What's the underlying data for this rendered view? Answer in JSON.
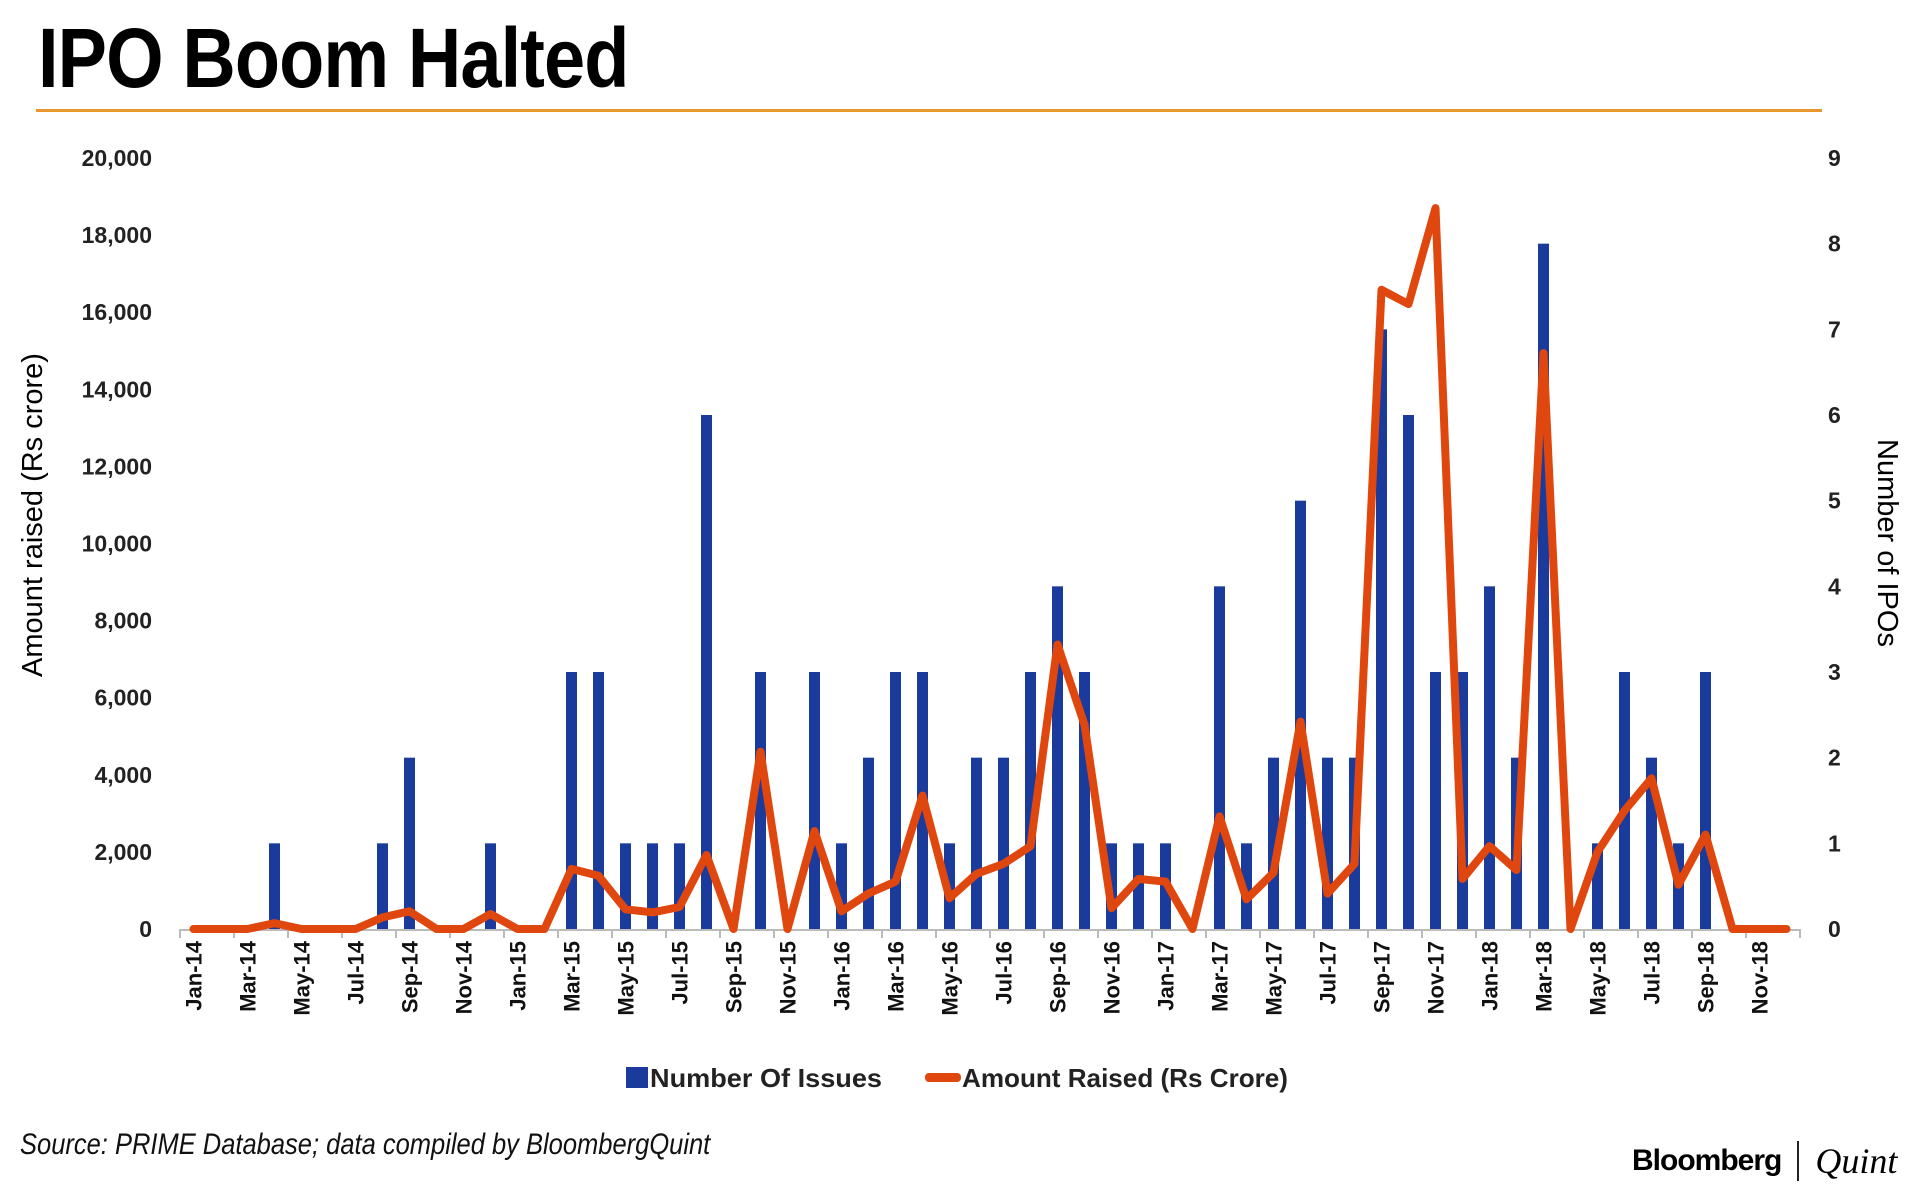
{
  "header": {
    "title": "IPO Boom Halted"
  },
  "footer": {
    "source": "Source: PRIME Database; data compiled by BloombergQuint",
    "logo_left": "Bloomberg",
    "logo_right": "Quint"
  },
  "colors": {
    "bars": "#1a3b9b",
    "line": "#e0470e",
    "rule": "#e8962e",
    "axis": "#bbbbbb"
  },
  "chart_data": {
    "type": "bar+line",
    "title": "IPO Boom Halted",
    "ylabel_left": "Amount raised (Rs crore)",
    "ylabel_right": "Number of IPOs",
    "ylim_left": [
      0,
      20000
    ],
    "ylim_right": [
      0,
      9
    ],
    "yticks_left": [
      "0",
      "2,000",
      "4,000",
      "6,000",
      "8,000",
      "10,000",
      "12,000",
      "14,000",
      "16,000",
      "18,000",
      "20,000"
    ],
    "yticks_right": [
      "0",
      "1",
      "2",
      "3",
      "4",
      "5",
      "6",
      "7",
      "8",
      "9"
    ],
    "grid": false,
    "legend_position": "bottom",
    "categories": [
      "Jan-14",
      "Feb-14",
      "Mar-14",
      "Apr-14",
      "May-14",
      "Jun-14",
      "Jul-14",
      "Aug-14",
      "Sep-14",
      "Oct-14",
      "Nov-14",
      "Dec-14",
      "Jan-15",
      "Feb-15",
      "Mar-15",
      "Apr-15",
      "May-15",
      "Jun-15",
      "Jul-15",
      "Aug-15",
      "Sep-15",
      "Oct-15",
      "Nov-15",
      "Dec-15",
      "Jan-16",
      "Feb-16",
      "Mar-16",
      "Apr-16",
      "May-16",
      "Jun-16",
      "Jul-16",
      "Aug-16",
      "Sep-16",
      "Oct-16",
      "Nov-16",
      "Dec-16",
      "Jan-17",
      "Feb-17",
      "Mar-17",
      "Apr-17",
      "May-17",
      "Jun-17",
      "Jul-17",
      "Aug-17",
      "Sep-17",
      "Oct-17",
      "Nov-17",
      "Dec-17",
      "Jan-18",
      "Feb-18",
      "Mar-18",
      "Apr-18",
      "May-18",
      "Jun-18",
      "Jul-18",
      "Aug-18",
      "Sep-18",
      "Oct-18",
      "Nov-18",
      "Dec-18"
    ],
    "xtick_labels": [
      "Jan-14",
      "Mar-14",
      "May-14",
      "Jul-14",
      "Sep-14",
      "Nov-14",
      "Jan-15",
      "Mar-15",
      "May-15",
      "Jul-15",
      "Sep-15",
      "Nov-15",
      "Jan-16",
      "Mar-16",
      "May-16",
      "Jul-16",
      "Sep-16",
      "Nov-16",
      "Jan-17",
      "Mar-17",
      "May-17",
      "Jul-17",
      "Sep-17",
      "Nov-17",
      "Jan-18",
      "Mar-18",
      "May-18",
      "Jul-18",
      "Sep-18",
      "Nov-18"
    ],
    "series": [
      {
        "name": "Number Of Issues",
        "type": "bar",
        "axis": "right",
        "values": [
          0,
          0,
          0,
          1,
          0,
          0,
          0,
          1,
          2,
          0,
          0,
          1,
          0,
          0,
          3,
          3,
          1,
          1,
          1,
          6,
          0,
          3,
          0,
          3,
          1,
          2,
          3,
          3,
          1,
          2,
          2,
          3,
          4,
          3,
          1,
          1,
          1,
          0,
          4,
          1,
          2,
          5,
          2,
          2,
          7,
          6,
          3,
          3,
          4,
          2,
          8,
          0,
          1,
          3,
          2,
          1,
          3,
          0,
          0,
          0
        ]
      },
      {
        "name": "Amount Raised (Rs Crore)",
        "type": "line",
        "axis": "left",
        "values": [
          0,
          0,
          0,
          150,
          0,
          0,
          0,
          300,
          460,
          0,
          0,
          390,
          0,
          0,
          1560,
          1380,
          510,
          430,
          570,
          1920,
          0,
          4600,
          0,
          2540,
          460,
          920,
          1230,
          3460,
          800,
          1430,
          1690,
          2150,
          7380,
          5300,
          540,
          1300,
          1230,
          0,
          2920,
          770,
          1460,
          5380,
          920,
          1690,
          16580,
          16210,
          18700,
          1300,
          2150,
          1530,
          14940,
          0,
          2000,
          3070,
          3910,
          1150,
          2450,
          0,
          0,
          0
        ]
      }
    ]
  }
}
